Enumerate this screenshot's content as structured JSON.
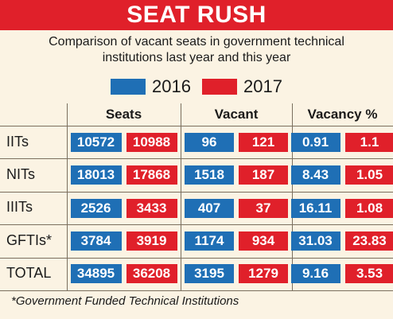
{
  "colors": {
    "banner": "#e0202a",
    "y2016": "#1f6fb5",
    "y2017": "#e0202a"
  },
  "banner": {
    "title": "SEAT RUSH"
  },
  "subtitle_lines": [
    "Comparison of vacant seats in government technical",
    "institutions last year and this year"
  ],
  "footnote": "*Government Funded Technical Institutions",
  "chart_data": {
    "type": "table",
    "title": "SEAT RUSH",
    "legend": [
      "2016",
      "2017"
    ],
    "columns": [
      "Seats",
      "Vacant",
      "Vacancy %"
    ],
    "rows": [
      {
        "label": "IITs",
        "values": [
          [
            "10572",
            "10988"
          ],
          [
            "96",
            "121"
          ],
          [
            "0.91",
            "1.1"
          ]
        ]
      },
      {
        "label": "NITs",
        "values": [
          [
            "18013",
            "17868"
          ],
          [
            "1518",
            "187"
          ],
          [
            "8.43",
            "1.05"
          ]
        ]
      },
      {
        "label": "IIITs",
        "values": [
          [
            "2526",
            "3433"
          ],
          [
            "407",
            "37"
          ],
          [
            "16.11",
            "1.08"
          ]
        ]
      },
      {
        "label": "GFTIs*",
        "values": [
          [
            "3784",
            "3919"
          ],
          [
            "1174",
            "934"
          ],
          [
            "31.03",
            "23.83"
          ]
        ]
      },
      {
        "label": "TOTAL",
        "values": [
          [
            "34895",
            "36208"
          ],
          [
            "3195",
            "1279"
          ],
          [
            "9.16",
            "3.53"
          ]
        ]
      }
    ]
  }
}
